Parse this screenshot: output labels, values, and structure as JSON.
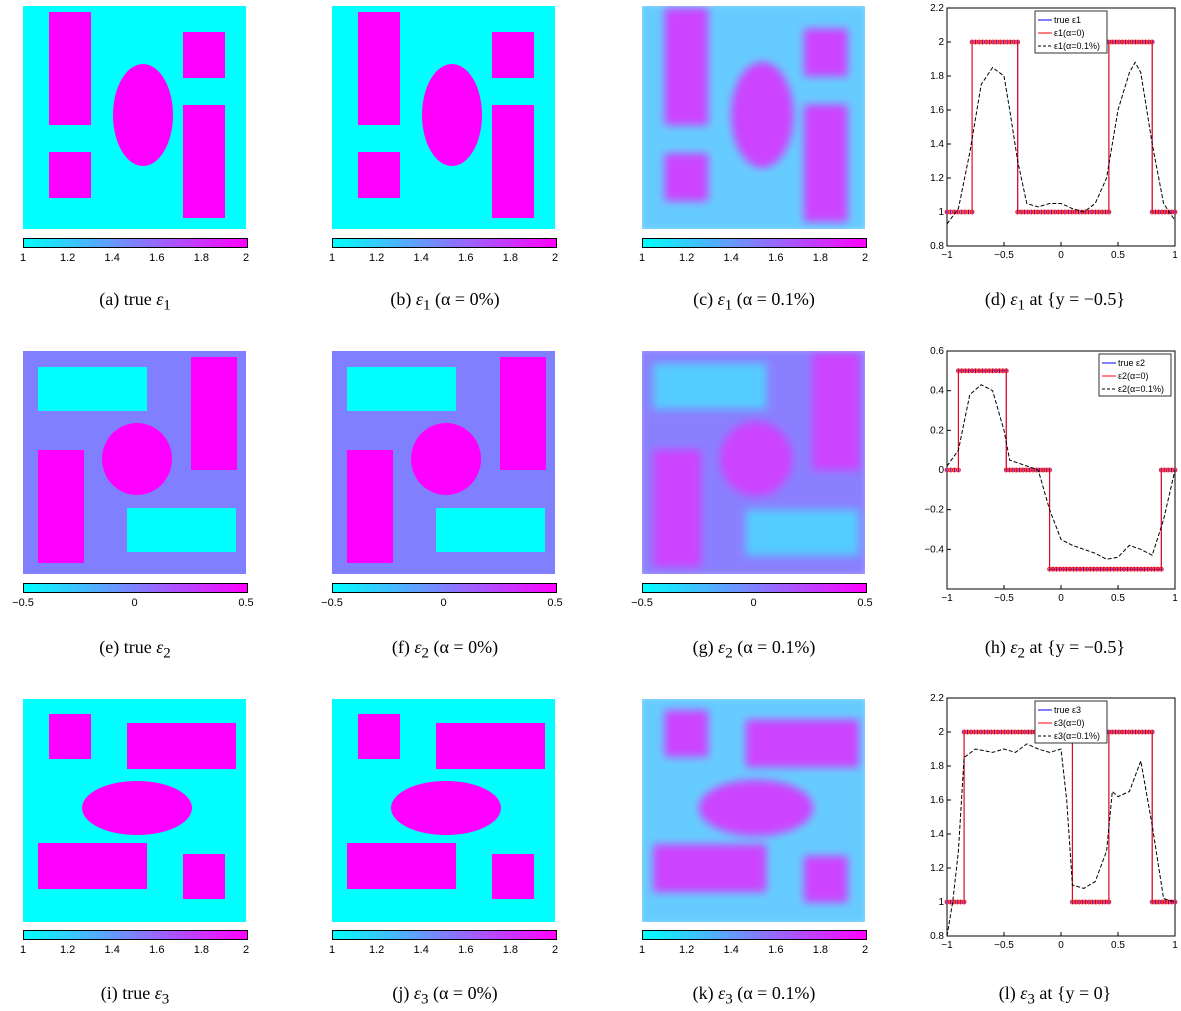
{
  "colorbars": {
    "eps1": [
      "1",
      "1.2",
      "1.4",
      "1.6",
      "1.8",
      "2"
    ],
    "eps2": [
      "−0.5",
      "0",
      "0.5"
    ],
    "eps3": [
      "1",
      "1.2",
      "1.4",
      "1.6",
      "1.8",
      "2"
    ]
  },
  "captions": {
    "a": {
      "label": "(a)",
      "prefix": "true",
      "sym": "ε",
      "sub": "1",
      "tail": ""
    },
    "b": {
      "label": "(b)",
      "prefix": "",
      "sym": "ε",
      "sub": "1",
      "tail": "(α = 0%)"
    },
    "c": {
      "label": "(c)",
      "prefix": "",
      "sym": "ε",
      "sub": "1",
      "tail": "(α = 0.1%)"
    },
    "d": {
      "label": "(d)",
      "prefix": "",
      "sym": "ε",
      "sub": "1",
      "tail": "at {y = −0.5}"
    },
    "e": {
      "label": "(e)",
      "prefix": "true",
      "sym": "ε",
      "sub": "2",
      "tail": ""
    },
    "f": {
      "label": "(f)",
      "prefix": "",
      "sym": "ε",
      "sub": "2",
      "tail": "(α = 0%)"
    },
    "g": {
      "label": "(g)",
      "prefix": "",
      "sym": "ε",
      "sub": "2",
      "tail": "(α = 0.1%)"
    },
    "h": {
      "label": "(h)",
      "prefix": "",
      "sym": "ε",
      "sub": "2",
      "tail": "at {y = −0.5}"
    },
    "i": {
      "label": "(i)",
      "prefix": "true",
      "sym": "ε",
      "sub": "3",
      "tail": ""
    },
    "j": {
      "label": "(j)",
      "prefix": "",
      "sym": "ε",
      "sub": "3",
      "tail": "(α = 0%)"
    },
    "k": {
      "label": "(k)",
      "prefix": "",
      "sym": "ε",
      "sub": "3",
      "tail": "(α = 0.1%)"
    },
    "l": {
      "label": "(l)",
      "prefix": "",
      "sym": "ε",
      "sub": "3",
      "tail": "at {y = 0}"
    }
  },
  "chart_data": [
    {
      "type": "line",
      "xlim": [
        -1,
        1
      ],
      "ylim": [
        0.8,
        2.2
      ],
      "xticks": [
        "−1",
        "−0.5",
        "0",
        "0.5",
        "1"
      ],
      "yticks": [
        "0.8",
        "1",
        "1.2",
        "1.4",
        "1.6",
        "1.8",
        "2",
        "2.2"
      ],
      "legend": [
        "true ε1",
        "ε1(α=0)",
        "ε1(α=0.1%)"
      ],
      "legend_position": "top-center",
      "series": [
        {
          "name": "true ε1",
          "color": "#0000ff",
          "x": [
            -1,
            -0.78,
            -0.78,
            -0.38,
            -0.38,
            0.42,
            0.42,
            0.8,
            0.8,
            1
          ],
          "y": [
            1,
            1,
            2,
            2,
            1,
            1,
            2,
            2,
            1,
            1
          ]
        },
        {
          "name": "ε1(α=0)",
          "color": "#ff0000",
          "x": [
            -1,
            -0.78,
            -0.78,
            -0.38,
            -0.38,
            0.42,
            0.42,
            0.8,
            0.8,
            1
          ],
          "y": [
            1,
            1,
            2,
            2,
            1,
            1,
            2,
            2,
            1,
            1
          ]
        },
        {
          "name": "ε1(α=0.1%)",
          "color": "#000000",
          "x": [
            -1,
            -0.9,
            -0.8,
            -0.7,
            -0.6,
            -0.5,
            -0.45,
            -0.38,
            -0.3,
            -0.2,
            -0.1,
            0,
            0.1,
            0.2,
            0.3,
            0.4,
            0.5,
            0.6,
            0.65,
            0.7,
            0.8,
            0.9,
            1
          ],
          "y": [
            0.93,
            1.02,
            1.35,
            1.75,
            1.85,
            1.8,
            1.6,
            1.3,
            1.05,
            1.03,
            1.05,
            1.05,
            1.02,
            1.0,
            1.05,
            1.2,
            1.6,
            1.82,
            1.88,
            1.82,
            1.4,
            1.05,
            0.95
          ]
        }
      ]
    },
    {
      "type": "line",
      "xlim": [
        -1,
        1
      ],
      "ylim": [
        -0.6,
        0.6
      ],
      "xticks": [
        "−1",
        "−0.5",
        "0",
        "0.5",
        "1"
      ],
      "yticks": [
        "−0.4",
        "−0.2",
        "0",
        "0.2",
        "0.4",
        "0.6"
      ],
      "legend": [
        "true ε2",
        "ε2(α=0)",
        "ε2(α=0.1%)"
      ],
      "legend_position": "top-right",
      "series": [
        {
          "name": "true ε2",
          "color": "#0000ff",
          "x": [
            -1,
            -0.9,
            -0.9,
            -0.48,
            -0.48,
            -0.1,
            -0.1,
            0.88,
            0.88,
            1
          ],
          "y": [
            0,
            0,
            0.5,
            0.5,
            0,
            0,
            -0.5,
            -0.5,
            0,
            0
          ]
        },
        {
          "name": "ε2(α=0)",
          "color": "#ff0000",
          "x": [
            -1,
            -0.9,
            -0.9,
            -0.48,
            -0.48,
            -0.1,
            -0.1,
            0.88,
            0.88,
            1
          ],
          "y": [
            0,
            0,
            0.5,
            0.5,
            0,
            0,
            -0.5,
            -0.5,
            0,
            0
          ]
        },
        {
          "name": "ε2(α=0.1%)",
          "color": "#000000",
          "x": [
            -1,
            -0.9,
            -0.8,
            -0.7,
            -0.6,
            -0.5,
            -0.45,
            -0.3,
            -0.2,
            -0.1,
            0,
            0.1,
            0.2,
            0.3,
            0.4,
            0.5,
            0.6,
            0.7,
            0.8,
            0.9,
            1
          ],
          "y": [
            0.02,
            0.1,
            0.38,
            0.43,
            0.4,
            0.2,
            0.05,
            0.02,
            0.0,
            -0.2,
            -0.35,
            -0.38,
            -0.4,
            -0.42,
            -0.45,
            -0.44,
            -0.38,
            -0.4,
            -0.43,
            -0.25,
            0.0
          ]
        }
      ]
    },
    {
      "type": "line",
      "xlim": [
        -1,
        1
      ],
      "ylim": [
        0.8,
        2.2
      ],
      "xticks": [
        "−1",
        "−0.5",
        "0",
        "0.5",
        "1"
      ],
      "yticks": [
        "0.8",
        "1",
        "1.2",
        "1.4",
        "1.6",
        "1.8",
        "2",
        "2.2"
      ],
      "legend": [
        "true ε3",
        "ε3(α=0)",
        "ε3(α=0.1%)"
      ],
      "legend_position": "top-center",
      "series": [
        {
          "name": "true ε3",
          "color": "#0000ff",
          "x": [
            -1,
            -0.85,
            -0.85,
            0.1,
            0.1,
            0.42,
            0.42,
            0.8,
            0.8,
            1
          ],
          "y": [
            1,
            1,
            2,
            2,
            1,
            1,
            2,
            2,
            1,
            1
          ]
        },
        {
          "name": "ε3(α=0)",
          "color": "#ff0000",
          "x": [
            -1,
            -0.85,
            -0.85,
            0.1,
            0.1,
            0.42,
            0.42,
            0.8,
            0.8,
            1
          ],
          "y": [
            1,
            1,
            2,
            2,
            1,
            1,
            2,
            2,
            1,
            1
          ]
        },
        {
          "name": "ε3(α=0.1%)",
          "color": "#000000",
          "x": [
            -1,
            -0.95,
            -0.9,
            -0.85,
            -0.75,
            -0.6,
            -0.5,
            -0.4,
            -0.3,
            -0.2,
            -0.1,
            0,
            0.05,
            0.1,
            0.2,
            0.3,
            0.4,
            0.45,
            0.5,
            0.6,
            0.7,
            0.8,
            0.9,
            1
          ],
          "y": [
            0.8,
            1.0,
            1.3,
            1.85,
            1.9,
            1.88,
            1.9,
            1.88,
            1.93,
            1.9,
            1.88,
            1.9,
            1.6,
            1.1,
            1.08,
            1.12,
            1.3,
            1.65,
            1.62,
            1.65,
            1.83,
            1.45,
            1.02,
            1.0
          ]
        }
      ]
    }
  ]
}
